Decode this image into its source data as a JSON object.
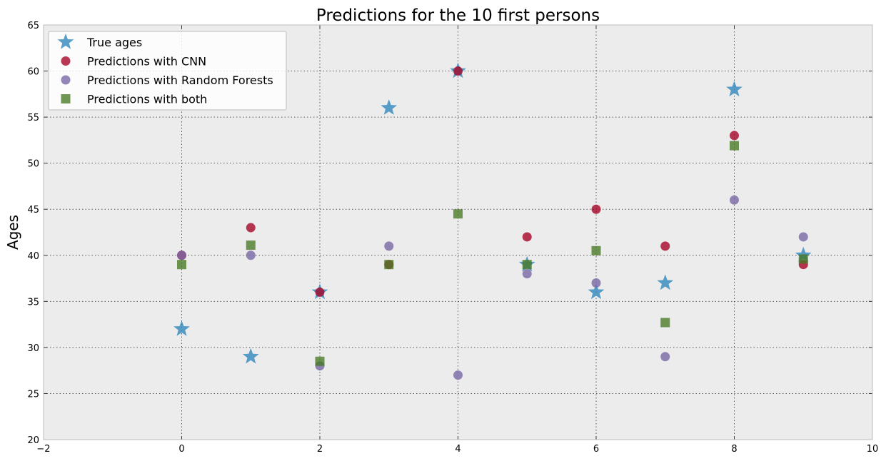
{
  "chart_data": {
    "type": "scatter",
    "title": "Predictions for the 10 first persons",
    "xlabel": "",
    "ylabel": "Ages",
    "xlim": [
      -2,
      10
    ],
    "ylim": [
      20,
      65
    ],
    "xticks": [
      -2,
      0,
      2,
      4,
      6,
      8,
      10
    ],
    "yticks": [
      20,
      25,
      30,
      35,
      40,
      45,
      50,
      55,
      60,
      65
    ],
    "grid": true,
    "legend_position": "top-left",
    "series": [
      {
        "name": "True ages",
        "marker": "star",
        "color": "#348abd",
        "x": [
          0,
          1,
          2,
          3,
          4,
          5,
          6,
          7,
          8,
          9
        ],
        "y": [
          32,
          29,
          36,
          56,
          60,
          39,
          36,
          37,
          58,
          40
        ]
      },
      {
        "name": "Predictions with CNN",
        "marker": "circle",
        "color": "#a60628",
        "x": [
          0,
          1,
          2,
          3,
          4,
          5,
          6,
          7,
          8,
          9
        ],
        "y": [
          40,
          43,
          36,
          39,
          60,
          42,
          45,
          41,
          53,
          39
        ]
      },
      {
        "name": "Predictions with Random Forests",
        "marker": "circle",
        "color": "#7a68a6",
        "x": [
          0,
          1,
          2,
          3,
          4,
          5,
          6,
          7,
          8,
          9
        ],
        "y": [
          40,
          40,
          28,
          41,
          27,
          38,
          37,
          29,
          46,
          42
        ]
      },
      {
        "name": "Predictions with both",
        "marker": "square",
        "color": "#467821",
        "x": [
          0,
          1,
          2,
          3,
          4,
          5,
          6,
          7,
          8,
          9
        ],
        "y": [
          39,
          41.1,
          28.5,
          39,
          44.5,
          39,
          40.5,
          32.7,
          51.9,
          39.6
        ]
      }
    ]
  }
}
